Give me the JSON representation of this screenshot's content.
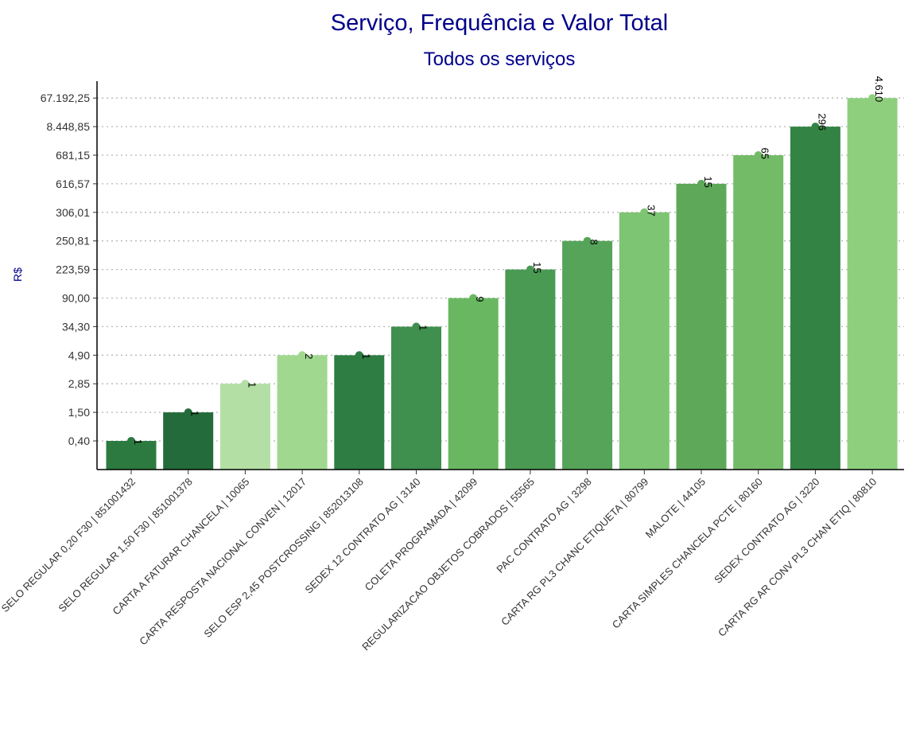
{
  "chart_data": {
    "type": "bar",
    "title": "Serviço, Frequência e Valor Total",
    "subtitle": "Todos os serviços",
    "xlabel": "",
    "ylabel": "R$",
    "y_scale": "categorical (ordered by value)",
    "grid": "horizontal dotted",
    "categories": [
      "SELO REGULAR 0,20 F30 | 851001432",
      "SELO REGULAR 1,50 F30 | 851001378",
      "CARTA A FATURAR CHANCELA | 10065",
      "CARTA RESPOSTA NACIONAL CONVEN | 12017",
      "SELO ESP 2,45 POSTCROSSING | 852013108",
      "SEDEX 12 CONTRATO AG | 3140",
      "COLETA PROGRAMADA | 42099",
      "REGULARIZACAO OBJETOS COBRADOS | 55565",
      "PAC CONTRATO AG | 3298",
      "CARTA RG PL3 CHANC ETIQUETA | 80799",
      "MALOTE | 44105",
      "CARTA SIMPLES CHANCELA PCTE | 80160",
      "SEDEX CONTRATO AG | 3220",
      "CARTA RG AR CONV PL3 CHAN ETIQ | 80810"
    ],
    "value_labels": [
      "0,40",
      "1,50",
      "2,85",
      "4,90",
      "4,90",
      "34,30",
      "90,00",
      "223,59",
      "250,81",
      "306,01",
      "616,57",
      "681,15",
      "8.448,85",
      "67.192,25"
    ],
    "values": [
      0.4,
      1.5,
      2.85,
      4.9,
      4.9,
      34.3,
      90.0,
      223.59,
      250.81,
      306.01,
      616.57,
      681.15,
      8448.85,
      67192.25
    ],
    "frequencies": [
      "1",
      "1",
      "1",
      "2",
      "1",
      "1",
      "9",
      "15",
      "8",
      "37",
      "15",
      "65",
      "296",
      "4.610"
    ],
    "y_ticks": [
      "0,40",
      "1,50",
      "2,85",
      "4,90",
      "34,30",
      "90,00",
      "223,59",
      "250,81",
      "306,01",
      "616,57",
      "681,15",
      "8.448,85",
      "67.192,25"
    ],
    "bar_colors": [
      "#2c7a40",
      "#236b3a",
      "#b3dfa5",
      "#a0d890",
      "#2e7d43",
      "#3f8f4e",
      "#69b861",
      "#4a9a54",
      "#56a45a",
      "#7dc473",
      "#5ea85a",
      "#74bb68",
      "#338444",
      "#8ecf7e"
    ],
    "colors": {
      "title": "#00008b",
      "grid": "#b5b5b5",
      "axis": "#000000",
      "tick_text": "#333333"
    }
  }
}
